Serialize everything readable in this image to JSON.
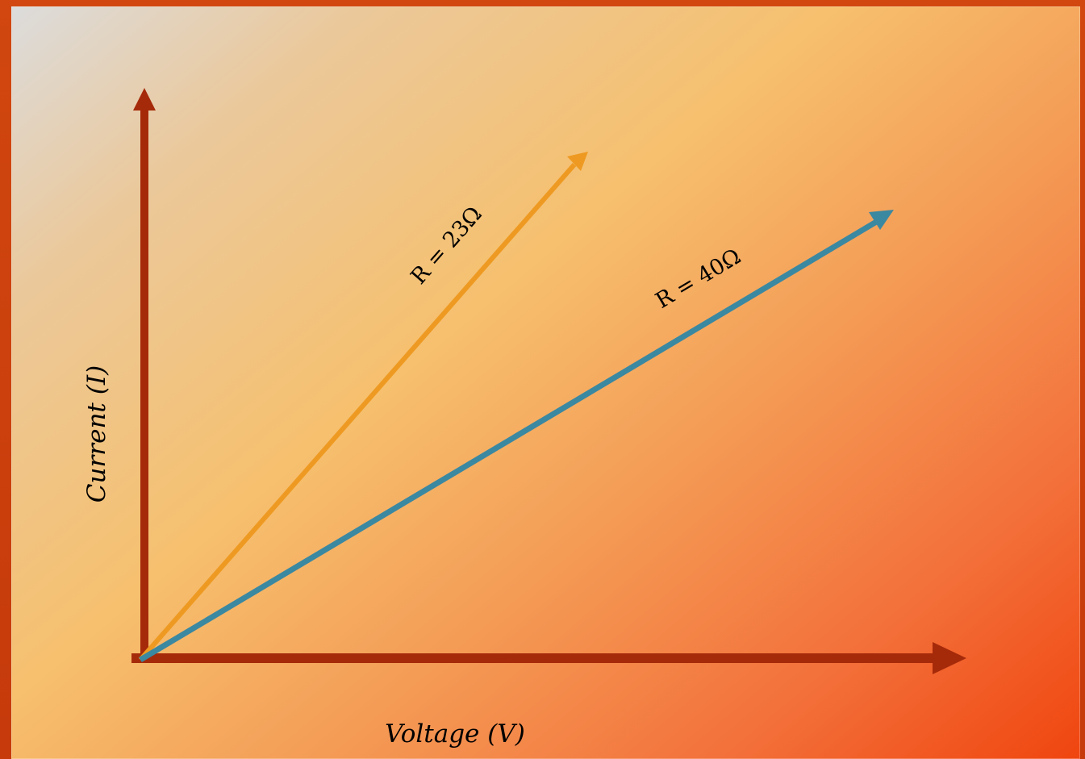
{
  "diagram": {
    "x_axis_label": "Voltage (V)",
    "y_axis_label": "Current (I)",
    "lines": [
      {
        "label": "R = 23Ω",
        "color": "#ee9a22"
      },
      {
        "label": "R = 40Ω",
        "color": "#3b88a1"
      }
    ],
    "axis_color": "#a52a0a"
  }
}
